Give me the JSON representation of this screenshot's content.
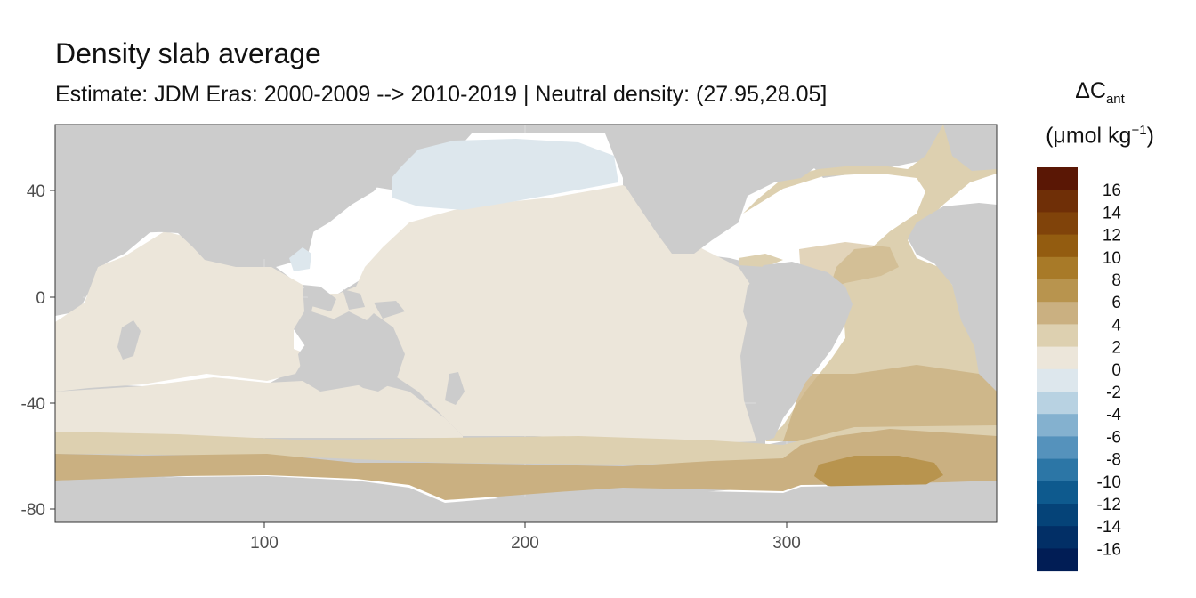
{
  "title": "Density slab average",
  "subtitle": "Estimate: JDM Eras: 2000-2009 --> 2010-2019 | Neutral density: (27.95,28.05]",
  "legend": {
    "title_symbol": "ΔC",
    "title_subscript": "ant",
    "unit_prefix": "(μmol kg",
    "unit_superscript": "−1",
    "unit_suffix": ")",
    "breaks": [
      "16",
      "14",
      "12",
      "10",
      "8",
      "6",
      "4",
      "2",
      "0",
      "-2",
      "-4",
      "-6",
      "-8",
      "-10",
      "-12",
      "-14",
      "-16"
    ],
    "colors": [
      "#5a1705",
      "#6f2f07",
      "#80430a",
      "#935c10",
      "#a87a28",
      "#b8944e",
      "#cab081",
      "#ddd0b0",
      "#ece6da",
      "#dde7ed",
      "#b8d2e2",
      "#84b1cf",
      "#5592bc",
      "#2c76a6",
      "#0e5a8e",
      "#054378",
      "#022f66",
      "#011d55"
    ]
  },
  "chart_data": {
    "type": "heatmap",
    "x_ticks": [
      "100",
      "200",
      "300"
    ],
    "y_ticks": [
      "40",
      "0",
      "-40",
      "-80"
    ],
    "xlim": [
      20,
      380
    ],
    "ylim": [
      -85,
      65
    ],
    "land_color": "#cccccc",
    "regions": [
      {
        "name": "Pacific / Indian Ocean",
        "value": 0.5,
        "color": "#ece6da"
      },
      {
        "name": "North Pacific",
        "value": -1,
        "color": "#dde7ed"
      },
      {
        "name": "Atlantic",
        "value": 2.5,
        "color": "#ddd0b0"
      },
      {
        "name": "Southern Ocean band",
        "value": 4.5,
        "color": "#cab081"
      },
      {
        "name": "Weddell Sea",
        "value": 7,
        "color": "#b8944e"
      }
    ]
  }
}
